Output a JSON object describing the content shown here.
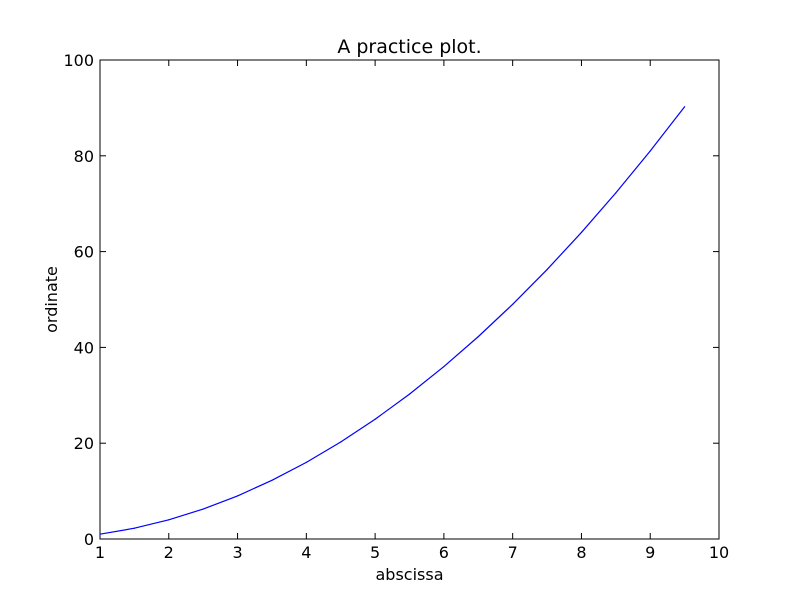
{
  "chart_data": {
    "type": "line",
    "title": "A practice plot.",
    "xlabel": "abscissa",
    "ylabel": "ordinate",
    "xlim": [
      1,
      10
    ],
    "ylim": [
      0,
      100
    ],
    "xticks": [
      "1",
      "2",
      "3",
      "4",
      "5",
      "6",
      "7",
      "8",
      "9",
      "10"
    ],
    "yticks": [
      "0",
      "20",
      "40",
      "60",
      "80",
      "100"
    ],
    "grid": false,
    "line_color": "#0000ff",
    "series": [
      {
        "x": [
          1,
          1.5,
          2,
          2.5,
          3,
          3.5,
          4,
          4.5,
          5,
          5.5,
          6,
          6.5,
          7,
          7.5,
          8,
          8.5,
          9,
          9.5
        ],
        "values": [
          1,
          2.25,
          4,
          6.25,
          9,
          12.25,
          16,
          20.25,
          25,
          30.25,
          36,
          42.25,
          49,
          56.25,
          64,
          72.25,
          81,
          90.25
        ]
      }
    ]
  }
}
